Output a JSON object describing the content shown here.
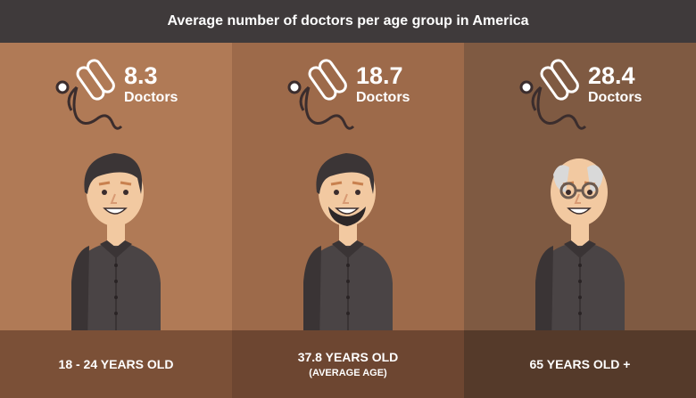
{
  "title": "Average number of doctors per age group in America",
  "colors": {
    "header": "#3f3a3b",
    "panels": [
      "#b07a56",
      "#9d6a4a",
      "#7f5a42"
    ],
    "footers": [
      "#7b5037",
      "#6d4631",
      "#553a2a"
    ]
  },
  "chart_data": {
    "type": "bar",
    "title": "Average number of doctors per age group in America",
    "categories": [
      "18 - 24 YEARS OLD",
      "37.8 YEARS OLD (AVERAGE AGE)",
      "65 YEARS OLD +"
    ],
    "values": [
      8.3,
      18.7,
      28.4
    ],
    "unit": "Doctors",
    "groups": [
      {
        "value": "8.3",
        "unit": "Doctors",
        "label": "18 - 24 YEARS OLD",
        "sublabel": ""
      },
      {
        "value": "18.7",
        "unit": "Doctors",
        "label": "37.8 YEARS OLD",
        "sublabel": "(AVERAGE AGE)"
      },
      {
        "value": "28.4",
        "unit": "Doctors",
        "label": "65 YEARS OLD +",
        "sublabel": ""
      }
    ]
  }
}
